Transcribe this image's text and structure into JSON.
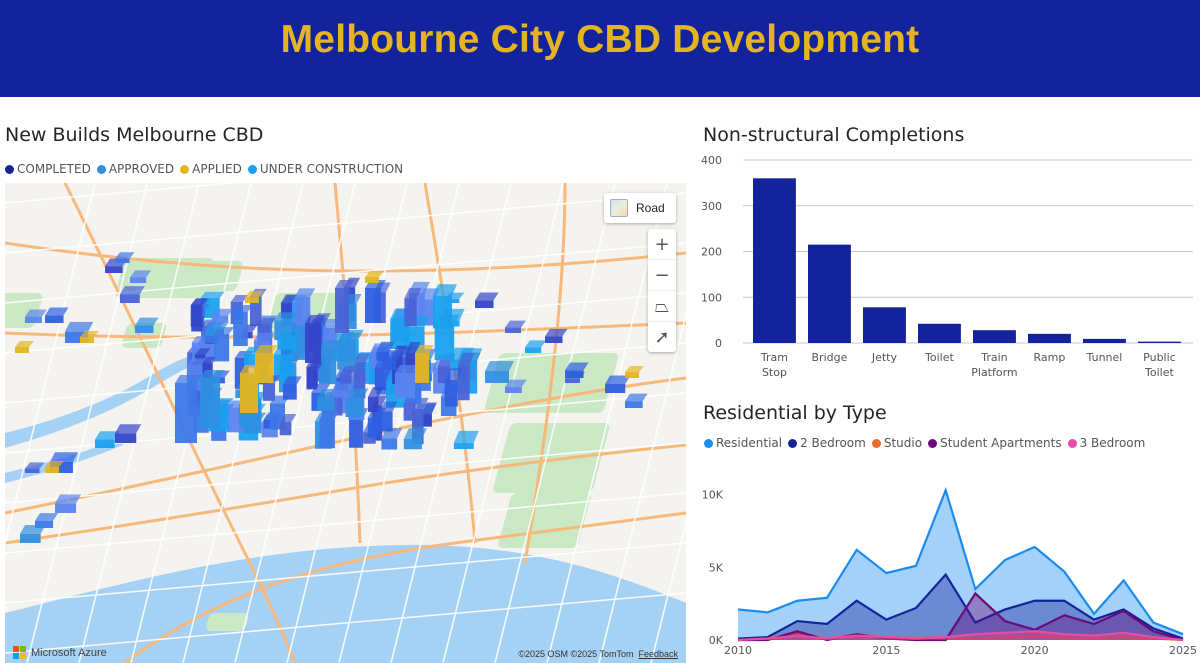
{
  "header": {
    "title": "Melbourne City CBD Development"
  },
  "map_panel": {
    "title": "New Builds Melbourne CBD",
    "legend": [
      {
        "label": "COMPLETED",
        "color": "#13239b"
      },
      {
        "label": "APPROVED",
        "color": "#2f8fe0"
      },
      {
        "label": "APPLIED",
        "color": "#e4b520"
      },
      {
        "label": "UNDER CONSTRUCTION",
        "color": "#1aa0ef"
      }
    ],
    "road_button": "Road",
    "controls": [
      {
        "name": "zoom-in-button",
        "glyph": "+"
      },
      {
        "name": "zoom-out-button",
        "glyph": "−"
      },
      {
        "name": "pitch-button",
        "glyph": "⏢"
      },
      {
        "name": "compass-button",
        "glyph": "➚"
      }
    ],
    "brand": "Microsoft Azure",
    "credit": "©2025 OSM  ©2025 TomTom",
    "feedback": "Feedback"
  },
  "bar_panel": {
    "title": "Non-structural Completions",
    "chart_data": {
      "type": "bar",
      "categories": [
        "Tram Stop",
        "Bridge",
        "Jetty",
        "Toilet",
        "Train Platform",
        "Ramp",
        "Tunnel",
        "Public Toilet"
      ],
      "values": [
        360,
        215,
        78,
        42,
        28,
        20,
        9,
        3
      ],
      "ylim": [
        0,
        400
      ],
      "yticks": [
        0,
        100,
        200,
        300,
        400
      ],
      "color": "#13239b",
      "grid": true
    }
  },
  "area_panel": {
    "title": "Residential by Type",
    "chart_data": {
      "type": "area",
      "x": [
        2010,
        2011,
        2012,
        2013,
        2014,
        2015,
        2016,
        2017,
        2018,
        2019,
        2020,
        2021,
        2022,
        2023,
        2024,
        2025
      ],
      "xticks": [
        2010,
        2015,
        2020,
        2025
      ],
      "ylim": [
        0,
        11000
      ],
      "yticks": [
        {
          "value": 0,
          "label": "0K"
        },
        {
          "value": 5000,
          "label": "5K"
        },
        {
          "value": 10000,
          "label": "10K"
        }
      ],
      "series": [
        {
          "name": "Residential",
          "color": "#1a8bef",
          "values": [
            2100,
            1900,
            2700,
            2900,
            6200,
            4600,
            5100,
            10300,
            3500,
            5500,
            6400,
            4700,
            1800,
            4100,
            1200,
            400
          ]
        },
        {
          "name": "2 Bedroom",
          "color": "#13239b",
          "values": [
            100,
            200,
            1300,
            1100,
            2700,
            1400,
            2200,
            4500,
            1200,
            2100,
            2700,
            2700,
            1400,
            2100,
            800,
            100
          ]
        },
        {
          "name": "Studio",
          "color": "#e86c2c",
          "values": [
            0,
            100,
            500,
            100,
            400,
            200,
            150,
            200,
            100,
            200,
            300,
            200,
            150,
            200,
            100,
            0
          ]
        },
        {
          "name": "Student Apartments",
          "color": "#6b0a7a",
          "values": [
            0,
            0,
            600,
            0,
            400,
            100,
            0,
            0,
            3200,
            1300,
            700,
            1700,
            1100,
            2000,
            600,
            0
          ]
        },
        {
          "name": "3 Bedroom",
          "color": "#e84ba5",
          "values": [
            0,
            100,
            300,
            100,
            300,
            200,
            100,
            200,
            400,
            500,
            600,
            400,
            300,
            500,
            200,
            0
          ]
        }
      ]
    }
  }
}
